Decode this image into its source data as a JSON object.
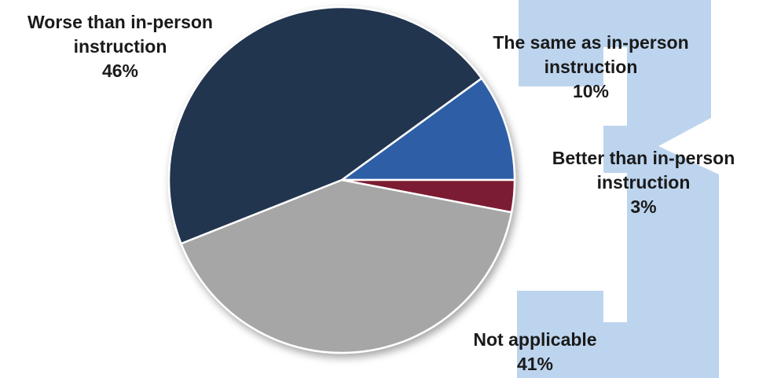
{
  "chart_data": {
    "type": "pie",
    "start_angle_deg": -36,
    "direction": "clockwise",
    "slices": [
      {
        "line1": "The same as in-person",
        "line2": "instruction",
        "percent_label": "10%",
        "value": 10,
        "color": "#2F5FA6"
      },
      {
        "line1": "Better than in-person",
        "line2": "instruction",
        "percent_label": "3%",
        "value": 3,
        "color": "#7B1A33"
      },
      {
        "line1": "Not applicable",
        "line2": "",
        "percent_label": "41%",
        "value": 41,
        "color": "#A6A6A6"
      },
      {
        "line1": "Worse than in-person",
        "line2": "instruction",
        "percent_label": "46%",
        "value": 46,
        "color": "#243450"
      }
    ]
  },
  "decoration": {
    "watermark_text": "3",
    "watermark_color": "#BDD4EE"
  }
}
